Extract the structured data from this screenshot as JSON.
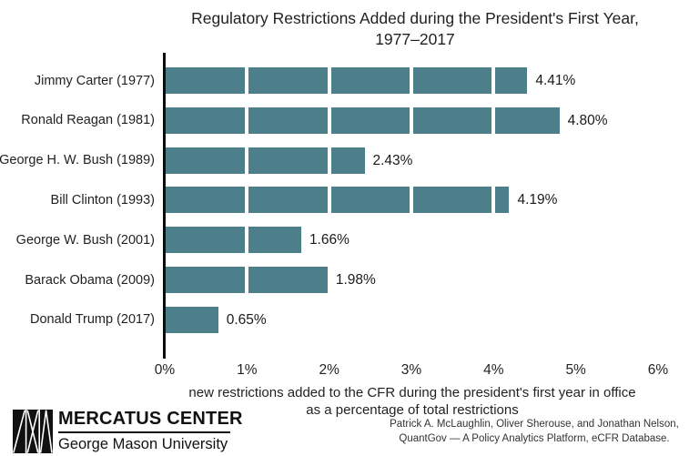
{
  "title": {
    "line1": "Regulatory Restrictions Added during the President's First Year,",
    "line2": "1977–2017"
  },
  "chart_data": {
    "type": "bar",
    "orientation": "horizontal",
    "title": "Regulatory Restrictions Added during the President's First Year, 1977–2017",
    "categories": [
      "Jimmy Carter (1977)",
      "Ronald Reagan (1981)",
      "George H. W. Bush (1989)",
      "Bill Clinton (1993)",
      "George W. Bush (2001)",
      "Barack Obama (2009)",
      "Donald Trump (2017)"
    ],
    "values": [
      4.41,
      4.8,
      2.43,
      4.19,
      1.66,
      1.98,
      0.65
    ],
    "value_labels": [
      "4.41%",
      "4.80%",
      "2.43%",
      "4.19%",
      "1.66%",
      "1.98%",
      "0.65%"
    ],
    "x_ticks": [
      "0%",
      "1%",
      "2%",
      "3%",
      "4%",
      "5%",
      "6%"
    ],
    "xlim": [
      0,
      6
    ],
    "xlabel_line1": "new restrictions added to the CFR during the president's first year in office",
    "xlabel_line2": "as a percentage of total restrictions",
    "bar_color": "#4d7f8a",
    "segment_divider_color": "#ffffff",
    "axis_color": "#0c0c0c",
    "grid": false,
    "legend": "none"
  },
  "footer": {
    "logo": {
      "icon": "mercatus-m-logo",
      "org": "MERCATUS CENTER",
      "sub": "George Mason University"
    },
    "credits_line1": "Patrick A. McLaughlin, Oliver Sherouse, and Jonathan Nelson,",
    "credits_line2": "QuantGov — A Policy Analytics Platform, eCFR Database."
  }
}
